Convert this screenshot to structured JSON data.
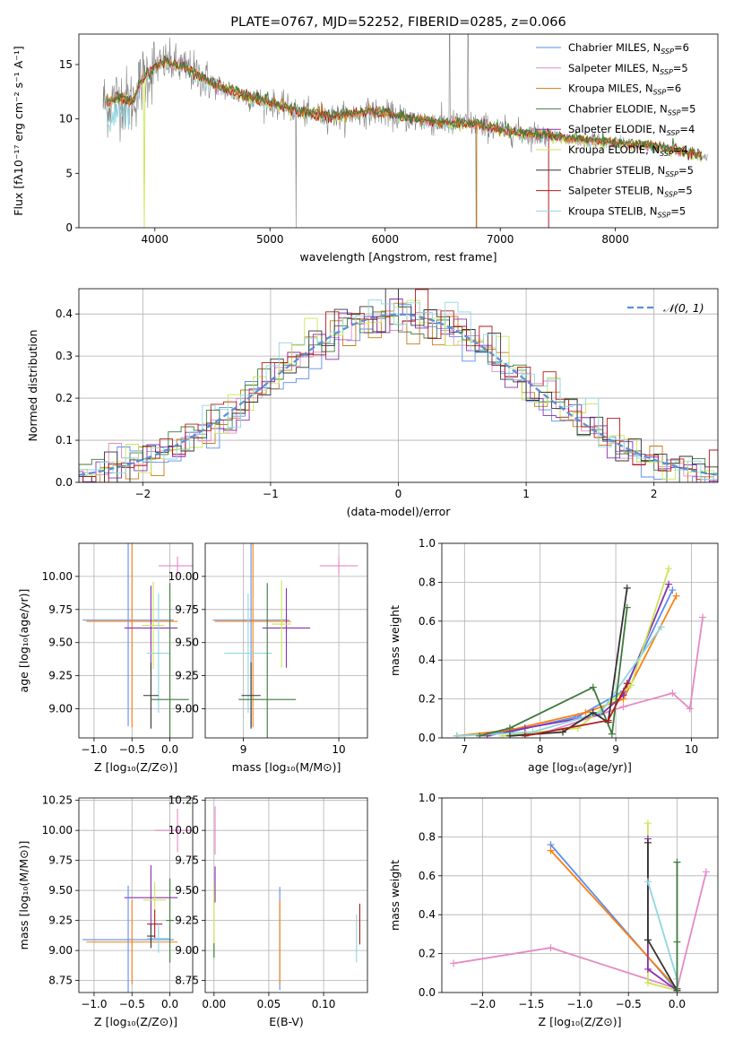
{
  "colors": {
    "chabrier_miles": "#5b8def",
    "salpeter_miles": "#e58ac4",
    "kroupa_miles": "#c77b1a",
    "chabrier_elodie": "#3d7a3d",
    "salpeter_elodie": "#8b2fb0",
    "kroupa_elodie": "#c8e655",
    "chabrier_stelib": "#333333",
    "salpeter_stelib": "#b01c1c",
    "kroupa_stelib": "#8fd6e0",
    "orange_c": "#ff7f0e",
    "data_gray": "#808080",
    "grid": "#b0b0b0"
  },
  "legend_ssp": [
    {
      "label": "Chabrier MILES, N",
      "sub": "SSP",
      "tail": "=6",
      "color": "chabrier_miles"
    },
    {
      "label": "Salpeter MILES, N",
      "sub": "SSP",
      "tail": "=5",
      "color": "salpeter_miles"
    },
    {
      "label": "Kroupa MILES, N",
      "sub": "SSP",
      "tail": "=6",
      "color": "kroupa_miles"
    },
    {
      "label": "Chabrier ELODIE, N",
      "sub": "SSP",
      "tail": "=5",
      "color": "chabrier_elodie"
    },
    {
      "label": "Salpeter ELODIE, N",
      "sub": "SSP",
      "tail": "=4",
      "color": "salpeter_elodie"
    },
    {
      "label": "Kroupa ELODIE, N",
      "sub": "SSP",
      "tail": "=4",
      "color": "kroupa_elodie"
    },
    {
      "label": "Chabrier STELIB, N",
      "sub": "SSP",
      "tail": "=5",
      "color": "chabrier_stelib"
    },
    {
      "label": "Salpeter STELIB, N",
      "sub": "SSP",
      "tail": "=5",
      "color": "salpeter_stelib"
    },
    {
      "label": "Kroupa STELIB, N",
      "sub": "SSP",
      "tail": "=5",
      "color": "kroupa_stelib"
    }
  ],
  "chart_data": [
    {
      "id": "spectrum",
      "type": "line",
      "title": "PLATE=0767, MJD=52252, FIBERID=0285, z=0.066",
      "xlabel": "wavelength [Angstrom, rest frame]",
      "ylabel": "Flux [fλ10⁻¹⁷ erg cm⁻² s⁻¹ A⁻¹]",
      "xlim": [
        3340,
        8890
      ],
      "ylim": [
        0,
        17.8
      ],
      "xticks": [
        4000,
        5000,
        6000,
        7000,
        8000
      ],
      "yticks": [
        0,
        5,
        10,
        15
      ],
      "grid": false,
      "legend_position": "top-right",
      "model_anchors": {
        "x": [
          3600,
          3700,
          3800,
          3900,
          4000,
          4100,
          4300,
          4500,
          4800,
          5000,
          5300,
          5600,
          5900,
          6200,
          6500,
          6800,
          7000,
          7200,
          7400,
          7600,
          8000,
          8400,
          8800
        ],
        "y": [
          11.5,
          12.0,
          11.5,
          13.8,
          14.8,
          15.2,
          14.5,
          13.2,
          12.0,
          11.5,
          10.5,
          10.2,
          10.7,
          10.0,
          9.6,
          9.5,
          9.0,
          8.7,
          8.5,
          8.2,
          7.8,
          7.4,
          6.5
        ]
      }
    },
    {
      "id": "residual_hist",
      "type": "line",
      "xlabel": "(data-model)/error",
      "ylabel": "Normed distribution",
      "xlim": [
        -2.5,
        2.5
      ],
      "ylim": [
        0,
        0.46
      ],
      "xticks": [
        -2,
        -1,
        0,
        1,
        2
      ],
      "yticks": [
        0.0,
        0.1,
        0.2,
        0.3,
        0.4
      ],
      "grid": true,
      "legend_position": "top-right",
      "legend": "𝒩(0, 1)",
      "reference_curve": "normal(0,1)"
    },
    {
      "id": "age_vs_Z",
      "type": "scatter",
      "xlabel": "Z [log₁₀(Z/Z⊙)]",
      "ylabel": "age  [log₁₀(age/yr)]",
      "xlim": [
        -1.2,
        0.3
      ],
      "ylim": [
        8.78,
        10.25
      ],
      "xticks": [
        -1.0,
        -0.5,
        0.0
      ],
      "yticks": [
        9.0,
        9.25,
        9.5,
        9.75,
        10.0
      ],
      "grid": true,
      "points": [
        {
          "c": "salpeter_miles",
          "x": 0.1,
          "y": 10.08,
          "xerr": 0.25,
          "yerr": 0.07
        },
        {
          "c": "chabrier_miles",
          "x": -0.55,
          "y": 9.67,
          "xerr": 0.6,
          "yerr": 0.8
        },
        {
          "c": "orange_c",
          "x": -0.5,
          "y": 9.66,
          "xerr": 0.6,
          "yerr": 0.8
        },
        {
          "c": "salpeter_elodie",
          "x": -0.25,
          "y": 9.61,
          "xerr": 0.35,
          "yerr": 0.32
        },
        {
          "c": "kroupa_elodie",
          "x": -0.22,
          "y": 9.63,
          "xerr": 0.15,
          "yerr": 0.33
        },
        {
          "c": "kroupa_stelib",
          "x": -0.15,
          "y": 9.42,
          "xerr": 0.15,
          "yerr": 0.45
        },
        {
          "c": "chabrier_stelib",
          "x": -0.25,
          "y": 9.1,
          "xerr": 0.1,
          "yerr": 0.25
        },
        {
          "c": "chabrier_elodie",
          "x": 0.0,
          "y": 9.07,
          "xerr": 0.25,
          "yerr": 0.88
        }
      ]
    },
    {
      "id": "age_vs_mass",
      "type": "scatter",
      "xlabel": "mass [log₁₀(M/M⊙)]",
      "ylabel": "",
      "xlim": [
        8.6,
        10.3
      ],
      "ylim": [
        8.78,
        10.25
      ],
      "xticks": [
        9,
        10
      ],
      "yticks": [
        9.0,
        9.25,
        9.5,
        9.75,
        10.0
      ],
      "grid": true,
      "points": [
        {
          "c": "salpeter_miles",
          "x": 10.0,
          "y": 10.08,
          "xerr": 0.2,
          "yerr": 0.07
        },
        {
          "c": "chabrier_miles",
          "x": 9.08,
          "y": 9.67,
          "xerr": 0.4,
          "yerr": 0.8
        },
        {
          "c": "orange_c",
          "x": 9.1,
          "y": 9.66,
          "xerr": 0.4,
          "yerr": 0.8
        },
        {
          "c": "salpeter_elodie",
          "x": 9.45,
          "y": 9.61,
          "xerr": 0.25,
          "yerr": 0.3
        },
        {
          "c": "kroupa_elodie",
          "x": 9.4,
          "y": 9.64,
          "xerr": 0.1,
          "yerr": 0.33
        },
        {
          "c": "kroupa_stelib",
          "x": 9.05,
          "y": 9.42,
          "xerr": 0.25,
          "yerr": 0.45
        },
        {
          "c": "chabrier_stelib",
          "x": 9.08,
          "y": 9.1,
          "xerr": 0.1,
          "yerr": 0.25
        },
        {
          "c": "chabrier_elodie",
          "x": 9.25,
          "y": 9.07,
          "xerr": 0.3,
          "yerr": 0.88
        }
      ]
    },
    {
      "id": "weight_vs_age",
      "type": "line",
      "xlabel": "age  [log₁₀(age/yr)]",
      "ylabel": "mass weight",
      "xlim": [
        6.7,
        10.35
      ],
      "ylim": [
        0,
        1.0
      ],
      "xticks": [
        7,
        8,
        9,
        10
      ],
      "yticks": [
        0.0,
        0.2,
        0.4,
        0.6,
        0.8,
        1.0
      ],
      "grid": true,
      "series": [
        {
          "c": "salpeter_miles",
          "x": [
            8.0,
            9.1,
            9.75,
            9.98,
            10.15
          ],
          "y": [
            0.02,
            0.16,
            0.23,
            0.15,
            0.62
          ]
        },
        {
          "c": "chabrier_miles",
          "x": 6.9,
          "_": "",
          "pts": [
            [
              6.9,
              0.01
            ],
            [
              7.6,
              0.03
            ],
            [
              8.5,
              0.11
            ],
            [
              9.1,
              0.24
            ],
            [
              9.75,
              0.76
            ]
          ]
        },
        {
          "c": "orange_c",
          "pts": [
            [
              6.9,
              0.01
            ],
            [
              7.6,
              0.04
            ],
            [
              8.6,
              0.13
            ],
            [
              9.1,
              0.2
            ],
            [
              9.8,
              0.73
            ]
          ]
        },
        {
          "c": "salpeter_elodie",
          "pts": [
            [
              7.3,
              0.01
            ],
            [
              7.8,
              0.05
            ],
            [
              8.8,
              0.12
            ],
            [
              9.1,
              0.22
            ],
            [
              9.7,
              0.79
            ]
          ]
        },
        {
          "c": "kroupa_elodie",
          "pts": [
            [
              7.5,
              0.01
            ],
            [
              8.5,
              0.05
            ],
            [
              9.2,
              0.27
            ],
            [
              9.7,
              0.87
            ]
          ]
        },
        {
          "c": "kroupa_stelib",
          "pts": [
            [
              6.9,
              0.01
            ],
            [
              7.9,
              0.03
            ],
            [
              8.8,
              0.13
            ],
            [
              9.6,
              0.57
            ]
          ]
        },
        {
          "c": "chabrier_stelib",
          "pts": [
            [
              7.6,
              0.01
            ],
            [
              8.3,
              0.03
            ],
            [
              8.7,
              0.13
            ],
            [
              8.9,
              0.08
            ],
            [
              9.15,
              0.77
            ]
          ]
        },
        {
          "c": "chabrier_elodie",
          "pts": [
            [
              7.2,
              0.01
            ],
            [
              7.6,
              0.05
            ],
            [
              8.7,
              0.26
            ],
            [
              8.95,
              0.02
            ],
            [
              9.15,
              0.67
            ]
          ]
        },
        {
          "c": "salpeter_stelib",
          "pts": [
            [
              7.8,
              0.01
            ],
            [
              8.9,
              0.09
            ],
            [
              9.15,
              0.28
            ]
          ]
        }
      ]
    },
    {
      "id": "mass_vs_Z",
      "type": "scatter",
      "xlabel": "Z [log₁₀(Z/Z⊙)]",
      "ylabel": "mass [log₁₀(M/M⊙)]",
      "xlim": [
        -1.2,
        0.3
      ],
      "ylim": [
        8.65,
        10.27
      ],
      "xticks": [
        -1.0,
        -0.5,
        0.0
      ],
      "yticks": [
        8.75,
        9.0,
        9.25,
        9.5,
        9.75,
        10.0,
        10.25
      ],
      "grid": true,
      "points": [
        {
          "c": "salpeter_miles",
          "x": 0.1,
          "y": 10.0,
          "xerr": 0.3,
          "yerr": 0.18
        },
        {
          "c": "salpeter_elodie",
          "x": -0.25,
          "y": 9.44,
          "xerr": 0.35,
          "yerr": 0.27
        },
        {
          "c": "kroupa_elodie",
          "x": -0.2,
          "y": 9.42,
          "xerr": 0.15,
          "yerr": 0.15
        },
        {
          "c": "salpeter_stelib",
          "x": -0.2,
          "y": 9.22,
          "xerr": 0.1,
          "yerr": 0.12
        },
        {
          "c": "chabrier_miles",
          "x": -0.55,
          "y": 9.09,
          "xerr": 0.6,
          "yerr": 0.45
        },
        {
          "c": "orange_c",
          "x": -0.5,
          "y": 9.07,
          "xerr": 0.6,
          "yerr": 0.35
        },
        {
          "c": "kroupa_stelib",
          "x": -0.15,
          "y": 9.1,
          "xerr": 0.15,
          "yerr": 0.12
        },
        {
          "c": "chabrier_stelib",
          "x": -0.25,
          "y": 9.12,
          "xerr": 0.05,
          "yerr": 0.1
        },
        {
          "c": "chabrier_elodie",
          "x": 0.0,
          "y": 9.25,
          "xerr": 0.05,
          "yerr": 0.35
        }
      ]
    },
    {
      "id": "mass_vs_ebv",
      "type": "scatter",
      "xlabel": "E(B-V)",
      "ylabel": "",
      "xlim": [
        -0.008,
        0.14
      ],
      "ylim": [
        8.65,
        10.27
      ],
      "xticks": [
        0.0,
        0.05,
        0.1
      ],
      "yticks": [
        8.75,
        9.0,
        9.25,
        9.5,
        9.75,
        10.0,
        10.25
      ],
      "grid": true,
      "points": [
        {
          "c": "salpeter_miles",
          "x": 0.001,
          "y": 10.0,
          "xerr": 0,
          "yerr": 0.2
        },
        {
          "c": "salpeter_elodie",
          "x": 0.001,
          "y": 9.55,
          "xerr": 0,
          "yerr": 0.15
        },
        {
          "c": "kroupa_elodie",
          "x": 0.0,
          "y": 9.25,
          "xerr": 0,
          "yerr": 0.3
        },
        {
          "c": "chabrier_elodie",
          "x": 0.0,
          "y": 9.0,
          "xerr": 0,
          "yerr": 0.06
        },
        {
          "c": "chabrier_miles",
          "x": 0.06,
          "y": 9.1,
          "xerr": 0,
          "yerr": 0.43
        },
        {
          "c": "orange_c",
          "x": 0.06,
          "y": 9.07,
          "xerr": 0,
          "yerr": 0.35
        },
        {
          "c": "kroupa_stelib",
          "x": 0.13,
          "y": 9.1,
          "xerr": 0,
          "yerr": 0.2
        },
        {
          "c": "salpeter_stelib",
          "x": 0.133,
          "y": 9.22,
          "xerr": 0,
          "yerr": 0.17
        }
      ]
    },
    {
      "id": "weight_vs_Z",
      "type": "line",
      "xlabel": "Z [log₁₀(Z/Z⊙)]",
      "ylabel": "mass weight",
      "xlim": [
        -2.42,
        0.42
      ],
      "ylim": [
        0,
        1.0
      ],
      "xticks": [
        -2.0,
        -1.5,
        -1.0,
        -0.5,
        0.0
      ],
      "yticks": [
        0.0,
        0.2,
        0.4,
        0.6,
        0.8,
        1.0
      ],
      "grid": true,
      "series": [
        {
          "c": "salpeter_miles",
          "pts": [
            [
              -2.3,
              0.15
            ],
            [
              -1.3,
              0.23
            ],
            [
              0.0,
              0.02
            ],
            [
              0.3,
              0.62
            ]
          ]
        },
        {
          "c": "chabrier_miles",
          "pts": [
            [
              -1.3,
              0.76
            ],
            [
              0.0,
              0.01
            ]
          ]
        },
        {
          "c": "orange_c",
          "pts": [
            [
              -1.3,
              0.73
            ],
            [
              0.0,
              0.02
            ]
          ]
        },
        {
          "c": "kroupa_elodie",
          "pts": [
            [
              -0.3,
              0.87
            ],
            [
              -0.3,
              0.05
            ],
            [
              0.0,
              0.01
            ]
          ]
        },
        {
          "c": "salpeter_elodie",
          "pts": [
            [
              -0.3,
              0.79
            ],
            [
              -0.3,
              0.12
            ],
            [
              0.0,
              0.01
            ]
          ]
        },
        {
          "c": "chabrier_stelib",
          "pts": [
            [
              -0.3,
              0.77
            ],
            [
              -0.3,
              0.27
            ],
            [
              0.0,
              0.01
            ]
          ]
        },
        {
          "c": "kroupa_stelib",
          "pts": [
            [
              -0.3,
              0.57
            ],
            [
              0.0,
              0.07
            ]
          ]
        },
        {
          "c": "chabrier_elodie",
          "pts": [
            [
              0.0,
              0.67
            ],
            [
              0.0,
              0.26
            ],
            [
              0.0,
              0.02
            ]
          ]
        }
      ]
    }
  ]
}
